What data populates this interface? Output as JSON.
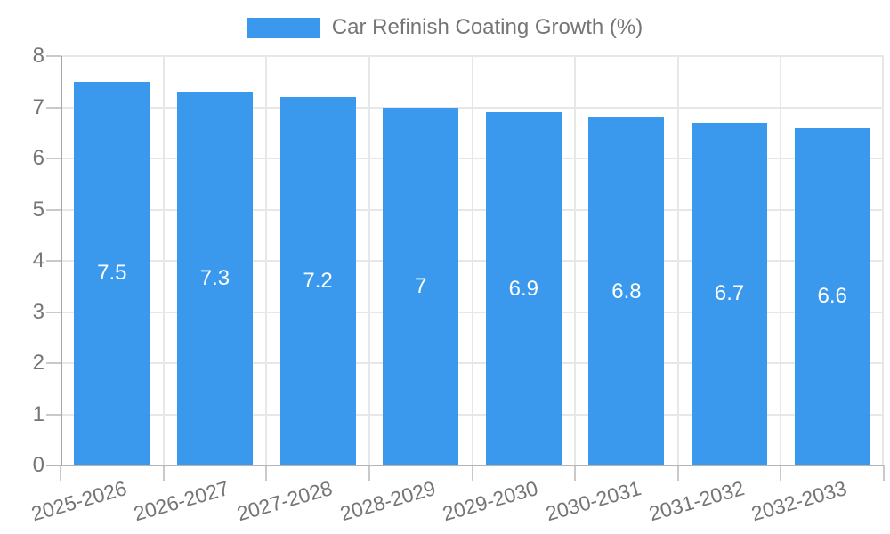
{
  "legend": {
    "label": "Car Refinish Coating Growth (%)",
    "swatch_color": "#3b99ed"
  },
  "chart_data": {
    "type": "bar",
    "title": "Car Refinish Coating Growth (%)",
    "categories": [
      "2025-2026",
      "2026-2027",
      "2027-2028",
      "2028-2029",
      "2029-2030",
      "2030-2031",
      "2031-2032",
      "2032-2033"
    ],
    "values": [
      7.5,
      7.3,
      7.2,
      7,
      6.9,
      6.8,
      6.7,
      6.6
    ],
    "value_labels": [
      "7.5",
      "7.3",
      "7.2",
      "7",
      "6.9",
      "6.8",
      "6.7",
      "6.6"
    ],
    "xlabel": "",
    "ylabel": "",
    "ylim": [
      0,
      8
    ],
    "yticks": [
      "0",
      "1",
      "2",
      "3",
      "4",
      "5",
      "6",
      "7",
      "8"
    ],
    "grid": true,
    "legend_position": "top",
    "bar_color": "#3b99ed",
    "value_label_color": "#ffffff",
    "axis_text_color": "#757575"
  }
}
